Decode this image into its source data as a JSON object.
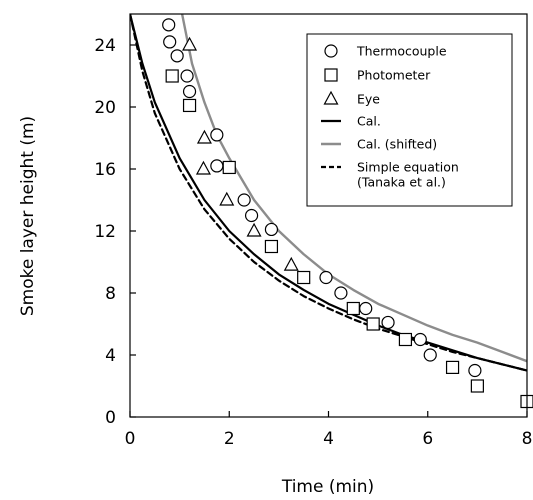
{
  "chart_data": {
    "type": "scatter",
    "xlabel": "Time (min)",
    "ylabel": "Smoke layer height (m)",
    "xlim": [
      0,
      8
    ],
    "ylim": [
      0,
      26
    ],
    "xticks": [
      0,
      2,
      4,
      6,
      8
    ],
    "yticks": [
      0,
      4,
      8,
      12,
      16,
      20,
      24
    ],
    "grid": false,
    "legend_position": "top-right",
    "series": [
      {
        "name": "Thermocouple",
        "kind": "points",
        "marker": "circle",
        "x": [
          0.78,
          0.8,
          0.95,
          1.15,
          1.2,
          1.75,
          1.75,
          2.3,
          2.45,
          2.85,
          3.95,
          4.25,
          4.75,
          5.2,
          5.85,
          6.05,
          6.95
        ],
        "y": [
          25.3,
          24.2,
          23.3,
          22.0,
          21.0,
          18.2,
          16.2,
          14.0,
          13.0,
          12.1,
          9.0,
          8.0,
          7.0,
          6.1,
          5.0,
          4.0,
          3.0
        ]
      },
      {
        "name": "Photometer",
        "kind": "points",
        "marker": "square",
        "x": [
          0.85,
          1.2,
          2.0,
          2.85,
          3.5,
          4.5,
          4.9,
          5.55,
          6.5,
          7.0,
          8.0
        ],
        "y": [
          22.0,
          20.1,
          16.1,
          11.0,
          9.0,
          7.0,
          6.0,
          5.0,
          3.2,
          2.0,
          1.0
        ]
      },
      {
        "name": "Eye",
        "kind": "points",
        "marker": "triangle",
        "x": [
          1.2,
          1.5,
          1.48,
          1.95,
          2.5,
          3.25
        ],
        "y": [
          24.0,
          18.0,
          16.0,
          14.0,
          12.0,
          9.8
        ]
      },
      {
        "name": "Cal.",
        "kind": "line",
        "color": "#000000",
        "dash": "solid",
        "x": [
          0,
          0.25,
          0.5,
          1,
          1.5,
          2,
          2.5,
          3,
          3.5,
          4,
          4.5,
          5,
          5.5,
          6,
          6.5,
          7,
          7.5,
          8
        ],
        "y": [
          26.0,
          22.8,
          20.3,
          16.7,
          14.0,
          12.0,
          10.5,
          9.2,
          8.2,
          7.3,
          6.6,
          5.9,
          5.3,
          4.8,
          4.3,
          3.8,
          3.4,
          3.0
        ]
      },
      {
        "name": "Cal. (shifted)",
        "kind": "line",
        "color": "#8c8c8c",
        "dash": "solid",
        "x": [
          1.05,
          1.25,
          1.5,
          1.75,
          2,
          2.5,
          3,
          3.5,
          4,
          4.5,
          5,
          5.5,
          6,
          6.5,
          7,
          7.5,
          8
        ],
        "y": [
          26.0,
          22.8,
          20.3,
          18.2,
          16.7,
          14.0,
          12.0,
          10.5,
          9.2,
          8.2,
          7.3,
          6.6,
          5.9,
          5.3,
          4.8,
          4.2,
          3.6
        ]
      },
      {
        "name": "Simple equation\n(Tanaka et al.)",
        "kind": "line",
        "color": "#000000",
        "dash": "dashed",
        "x": [
          0,
          0.25,
          0.5,
          1,
          1.5,
          2,
          2.5,
          3,
          3.5,
          4,
          4.5,
          5,
          5.5,
          6,
          6.5,
          7,
          7.5,
          8
        ],
        "y": [
          26.0,
          22.3,
          19.6,
          16.0,
          13.4,
          11.5,
          10.0,
          8.8,
          7.8,
          7.0,
          6.3,
          5.7,
          5.2,
          4.7,
          4.2,
          3.8,
          3.4,
          3.0
        ]
      }
    ]
  }
}
